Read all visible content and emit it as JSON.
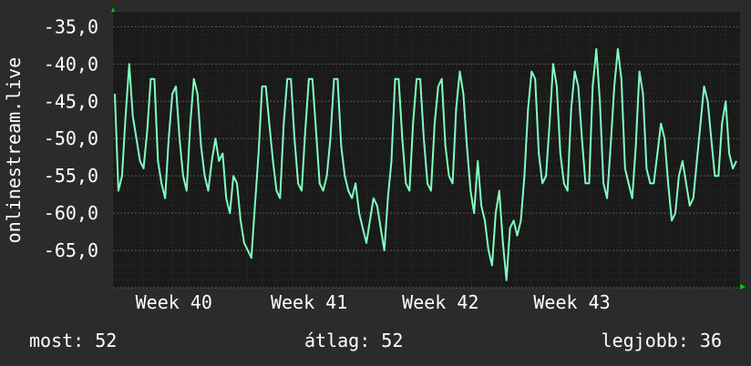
{
  "chart_data": {
    "type": "line",
    "ylabel": "onlinestream.live",
    "ylim": [
      -70,
      -33
    ],
    "y_ticks": [
      "-35,0",
      "-40,0",
      "-45,0",
      "-50,0",
      "-55,0",
      "-60,0",
      "-65,0"
    ],
    "y_tick_values": [
      -35,
      -40,
      -45,
      -50,
      -55,
      -60,
      -65
    ],
    "x_ticks": [
      "Week 40",
      "Week 41",
      "Week 42",
      "Week 43"
    ],
    "x_tick_positions": [
      0.2,
      0.38,
      0.555,
      0.73
    ],
    "grid": true,
    "series": [
      {
        "color": "#7fffc0",
        "values": [
          -44,
          -57,
          -55,
          -47,
          -40,
          -47,
          -50,
          -53,
          -54,
          -49,
          -42,
          -42,
          -53,
          -56,
          -58,
          -50,
          -44,
          -43,
          -50,
          -55,
          -57,
          -48,
          -42,
          -44,
          -51,
          -55,
          -57,
          -53,
          -50,
          -53,
          -52,
          -58,
          -60,
          -55,
          -56,
          -61,
          -64,
          -65,
          -66,
          -59,
          -52,
          -43,
          -43,
          -48,
          -53,
          -57,
          -58,
          -48,
          -42,
          -42,
          -50,
          -56,
          -57,
          -49,
          -42,
          -42,
          -49,
          -56,
          -57,
          -55,
          -50,
          -42,
          -42,
          -51,
          -55,
          -57,
          -58,
          -56,
          -60,
          -62,
          -64,
          -61,
          -58,
          -59,
          -62,
          -65,
          -58,
          -53,
          -42,
          -42,
          -50,
          -56,
          -57,
          -48,
          -42,
          -42,
          -50,
          -56,
          -57,
          -48,
          -43,
          -42,
          -51,
          -55,
          -56,
          -46,
          -41,
          -44,
          -51,
          -57,
          -60,
          -53,
          -59,
          -61,
          -65,
          -67,
          -60,
          -57,
          -64,
          -69,
          -62,
          -61,
          -63,
          -61,
          -55,
          -46,
          -41,
          -42,
          -52,
          -56,
          -55,
          -48,
          -40,
          -43,
          -52,
          -56,
          -57,
          -46,
          -41,
          -43,
          -50,
          -56,
          -56,
          -43,
          -38,
          -45,
          -56,
          -58,
          -51,
          -43,
          -38,
          -42,
          -54,
          -56,
          -58,
          -51,
          -41,
          -44,
          -54,
          -56,
          -56,
          -52,
          -48,
          -50,
          -56,
          -61,
          -60,
          -55,
          -53,
          -56,
          -59,
          -58,
          -53,
          -48,
          -43,
          -45,
          -50,
          -55,
          -55,
          -48,
          -45,
          -52,
          -54,
          -53
        ]
      }
    ]
  },
  "footer": {
    "current": "most: 52",
    "average": "átlag: 52",
    "best": "legjobb: 36"
  },
  "colors": {
    "background": "#2b2b2b",
    "plot_background": "#1a1a1a",
    "line": "#7fffc0",
    "axis_arrow": "#00cc00",
    "grid": "#4a4a4a"
  }
}
